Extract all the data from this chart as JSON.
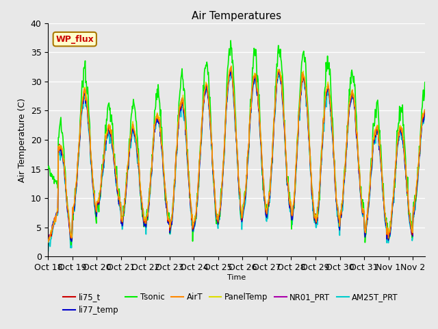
{
  "title": "Air Temperatures",
  "xlabel": "Time",
  "ylabel": "Air Temperature (C)",
  "ylim": [
    0,
    40
  ],
  "fig_bg_color": "#e8e8e8",
  "plot_bg_color": "#e8e8e8",
  "series": {
    "li75_t": {
      "color": "#cc0000",
      "lw": 1.0,
      "zorder": 5
    },
    "li77_temp": {
      "color": "#0000cc",
      "lw": 1.0,
      "zorder": 4
    },
    "Tsonic": {
      "color": "#00ee00",
      "lw": 1.2,
      "zorder": 3
    },
    "AirT": {
      "color": "#ff8800",
      "lw": 1.0,
      "zorder": 6
    },
    "PanelTemp": {
      "color": "#dddd00",
      "lw": 1.0,
      "zorder": 6
    },
    "NR01_PRT": {
      "color": "#aa00aa",
      "lw": 1.0,
      "zorder": 4
    },
    "AM25T_PRT": {
      "color": "#00cccc",
      "lw": 1.2,
      "zorder": 2
    }
  },
  "xtick_labels": [
    "Oct 18",
    "Oct 19",
    "Oct 20",
    "Oct 21",
    "Oct 22",
    "Oct 23",
    "Oct 24",
    "Oct 25",
    "Oct 26",
    "Oct 27",
    "Oct 28",
    "Oct 29",
    "Oct 30",
    "Oct 31",
    "Nov 1",
    "Nov 2"
  ],
  "xtick_positions": [
    0,
    1,
    2,
    3,
    4,
    5,
    6,
    7,
    8,
    9,
    10,
    11,
    12,
    13,
    14,
    15
  ],
  "wp_flux_label": "WP_flux",
  "wp_flux_color": "#cc0000",
  "wp_flux_bg": "#ffffcc",
  "wp_flux_border": "#aa7700",
  "grid_color": "white",
  "yticks": [
    0,
    5,
    10,
    15,
    20,
    25,
    30,
    35,
    40
  ]
}
